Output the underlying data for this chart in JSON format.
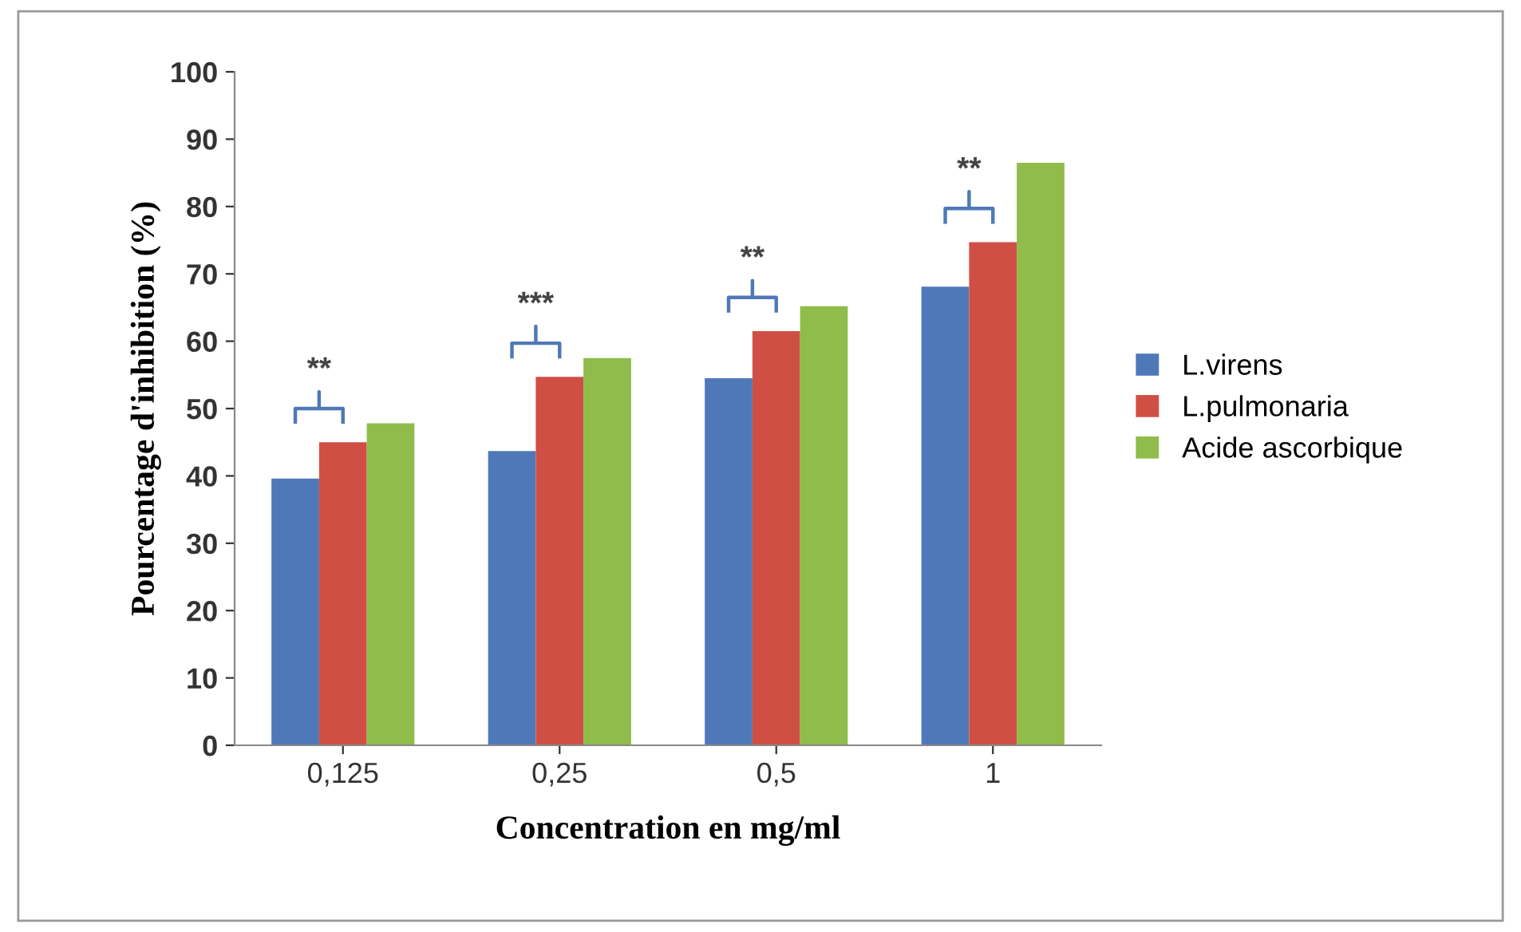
{
  "chart_data": {
    "type": "bar",
    "xlabel": "Concentration en mg/ml",
    "ylabel": "Pourcentage d'inhibition (%)",
    "categories": [
      "0,125",
      "0,25",
      "0,5",
      "1"
    ],
    "series": [
      {
        "name": "L.virens",
        "color": "#4f78b8",
        "values": [
          39.6,
          43.7,
          54.5,
          68.1
        ]
      },
      {
        "name": "L.pulmonaria",
        "color": "#cf4f45",
        "values": [
          45.0,
          54.7,
          61.5,
          74.7
        ]
      },
      {
        "name": "Acide ascorbique",
        "color": "#8fbc4a",
        "values": [
          47.8,
          57.5,
          65.2,
          86.5
        ]
      }
    ],
    "ylim": [
      0,
      100
    ],
    "yticks": [
      0,
      10,
      20,
      30,
      40,
      50,
      60,
      70,
      80,
      90,
      100
    ],
    "grid": false,
    "legend": "right",
    "annotations": [
      "**",
      "***",
      "**",
      "**"
    ]
  }
}
